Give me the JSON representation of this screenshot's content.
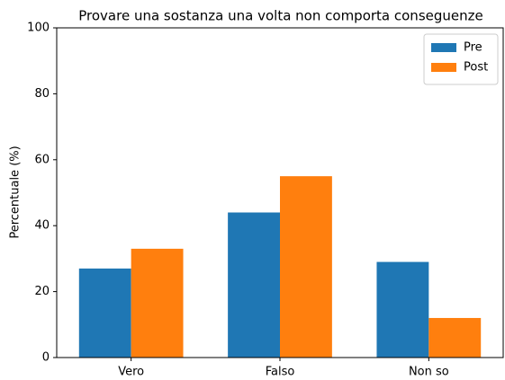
{
  "chart_data": {
    "type": "bar",
    "title": "Provare una sostanza una volta non comporta conseguenze",
    "ylabel": "Percentuale (%)",
    "categories": [
      "Vero",
      "Falso",
      "Non so"
    ],
    "series": [
      {
        "name": "Pre",
        "color": "#1f77b4",
        "values": [
          27,
          44,
          29
        ]
      },
      {
        "name": "Post",
        "color": "#ff7f0e",
        "values": [
          33,
          55,
          12
        ]
      }
    ],
    "ylim": [
      0,
      100
    ],
    "yticks": [
      0,
      20,
      40,
      60,
      80,
      100
    ],
    "grid": false,
    "legend": "upper right"
  }
}
